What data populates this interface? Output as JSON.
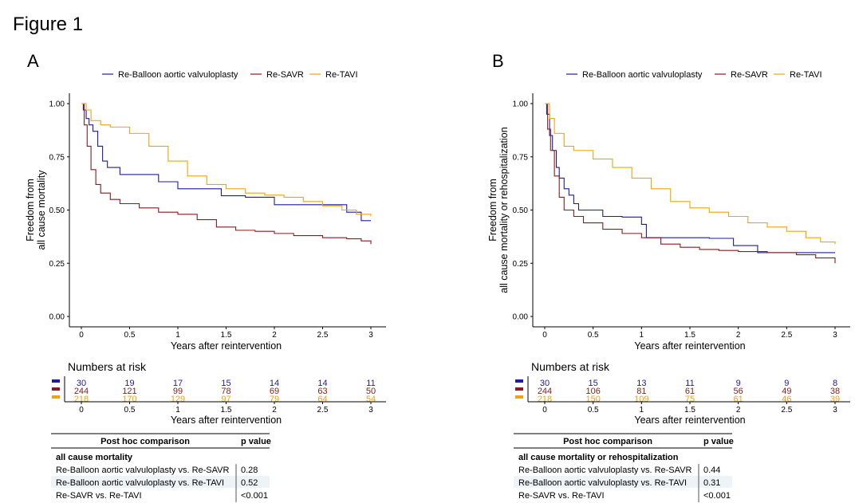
{
  "figure_title": "Figure 1",
  "colors": {
    "re_bav": "#1c1c9c",
    "re_savr": "#8b1a1a",
    "re_tavi": "#f2a20c"
  },
  "chart_data": [
    {
      "panel": "A",
      "type": "line",
      "step": true,
      "legend": [
        "Re-Balloon aortic valvuloplasty",
        "Re-SAVR",
        "Re-TAVI"
      ],
      "legend_position": "top",
      "xlabel": "Years after reintervention",
      "ylabel": [
        "Freedom from",
        "all cause mortality"
      ],
      "xlim": [
        0,
        3
      ],
      "ylim": [
        0,
        1
      ],
      "x_ticks": [
        "0",
        "0.5",
        "1",
        "1.5",
        "2",
        "2.5",
        "3"
      ],
      "y_ticks": [
        "0.00",
        "0.25",
        "0.50",
        "0.75",
        "1.00"
      ],
      "grid": false,
      "series": [
        {
          "name": "Re-Balloon aortic valvuloplasty",
          "color": "#1c1c9c",
          "x": [
            0,
            0.02,
            0.05,
            0.08,
            0.12,
            0.17,
            0.22,
            0.27,
            0.4,
            0.6,
            0.8,
            1.0,
            1.2,
            1.45,
            1.7,
            2.0,
            2.3,
            2.75,
            2.78,
            2.9,
            3.0
          ],
          "y": [
            1,
            0.97,
            0.93,
            0.9,
            0.87,
            0.8,
            0.73,
            0.7,
            0.667,
            0.667,
            0.633,
            0.6,
            0.6,
            0.567,
            0.56,
            0.525,
            0.525,
            0.49,
            0.49,
            0.45,
            0.45
          ]
        },
        {
          "name": "Re-SAVR",
          "color": "#8b1a1a",
          "x": [
            0,
            0.03,
            0.06,
            0.1,
            0.15,
            0.2,
            0.3,
            0.4,
            0.6,
            0.8,
            1.0,
            1.2,
            1.4,
            1.6,
            1.8,
            2.0,
            2.2,
            2.5,
            2.75,
            2.9,
            3.0
          ],
          "y": [
            1,
            0.9,
            0.8,
            0.69,
            0.62,
            0.58,
            0.55,
            0.53,
            0.51,
            0.49,
            0.48,
            0.455,
            0.42,
            0.405,
            0.4,
            0.39,
            0.38,
            0.37,
            0.365,
            0.355,
            0.34
          ]
        },
        {
          "name": "Re-TAVI",
          "color": "#f2a20c",
          "x": [
            0,
            0.05,
            0.1,
            0.2,
            0.3,
            0.5,
            0.7,
            0.9,
            1.1,
            1.3,
            1.5,
            1.7,
            1.9,
            2.1,
            2.3,
            2.5,
            2.7,
            2.85,
            3.0
          ],
          "y": [
            1,
            0.97,
            0.92,
            0.9,
            0.89,
            0.86,
            0.8,
            0.73,
            0.66,
            0.62,
            0.6,
            0.58,
            0.57,
            0.56,
            0.54,
            0.52,
            0.5,
            0.48,
            0.47
          ]
        }
      ],
      "numbers_at_risk": {
        "title": "Numbers at risk",
        "times": [
          "0",
          "0.5",
          "1",
          "1.5",
          "2",
          "2.5",
          "3"
        ],
        "rows": [
          {
            "color": "#1c1c9c",
            "values": [
              "30",
              "19",
              "17",
              "15",
              "14",
              "14",
              "11"
            ]
          },
          {
            "color": "#8b1a1a",
            "values": [
              "244",
              "121",
              "99",
              "78",
              "69",
              "63",
              "50"
            ]
          },
          {
            "color": "#f2a20c",
            "values": [
              "218",
              "170",
              "129",
              "97",
              "79",
              "64",
              "54"
            ]
          }
        ],
        "xlabel": "Years after reintervention"
      },
      "table": {
        "headers": [
          "Post hoc comparison",
          "p value"
        ],
        "section": "all cause mortality",
        "rows": [
          {
            "label": "Re-Balloon aortic valvuloplasty vs. Re-SAVR",
            "p": "0.28"
          },
          {
            "label": "Re-Balloon aortic valvuloplasty vs. Re-TAVI",
            "p": "0.52"
          },
          {
            "label": "Re-SAVR vs. Re-TAVI",
            "p": "<0.001"
          }
        ]
      }
    },
    {
      "panel": "B",
      "type": "line",
      "step": true,
      "legend": [
        "Re-Balloon aortic valvuloplasty",
        "Re-SAVR",
        "Re-TAVI"
      ],
      "legend_position": "top",
      "xlabel": "Years after reintervention",
      "ylabel": [
        "Freedom from",
        "all cause mortality or rehospitalization"
      ],
      "xlim": [
        0,
        3
      ],
      "ylim": [
        0,
        1
      ],
      "x_ticks": [
        "0",
        "0.5",
        "1",
        "1.5",
        "2",
        "2.5",
        "3"
      ],
      "y_ticks": [
        "0.00",
        "0.25",
        "0.50",
        "0.75",
        "1.00"
      ],
      "grid": false,
      "series": [
        {
          "name": "Re-Balloon aortic valvuloplasty",
          "color": "#1c1c9c",
          "x": [
            0,
            0.02,
            0.05,
            0.08,
            0.12,
            0.15,
            0.2,
            0.25,
            0.3,
            0.35,
            0.45,
            0.6,
            0.8,
            1.0,
            1.05,
            1.7,
            1.95,
            2.2,
            2.5,
            3.0
          ],
          "y": [
            1,
            0.95,
            0.85,
            0.78,
            0.7,
            0.65,
            0.6,
            0.57,
            0.53,
            0.5,
            0.5,
            0.47,
            0.467,
            0.433,
            0.37,
            0.367,
            0.333,
            0.3,
            0.3,
            0.3
          ]
        },
        {
          "name": "Re-SAVR",
          "color": "#8b1a1a",
          "x": [
            0,
            0.03,
            0.06,
            0.1,
            0.15,
            0.2,
            0.3,
            0.4,
            0.6,
            0.8,
            1.0,
            1.2,
            1.4,
            1.6,
            1.8,
            2.0,
            2.3,
            2.6,
            2.8,
            3.0
          ],
          "y": [
            1,
            0.88,
            0.78,
            0.66,
            0.56,
            0.5,
            0.47,
            0.44,
            0.41,
            0.39,
            0.37,
            0.34,
            0.325,
            0.315,
            0.31,
            0.305,
            0.3,
            0.29,
            0.275,
            0.25
          ]
        },
        {
          "name": "Re-TAVI",
          "color": "#f2a20c",
          "x": [
            0,
            0.05,
            0.1,
            0.2,
            0.3,
            0.5,
            0.7,
            0.9,
            1.1,
            1.3,
            1.5,
            1.7,
            1.9,
            2.1,
            2.3,
            2.5,
            2.7,
            2.85,
            3.0
          ],
          "y": [
            1,
            0.93,
            0.86,
            0.8,
            0.78,
            0.74,
            0.7,
            0.65,
            0.6,
            0.54,
            0.51,
            0.49,
            0.47,
            0.44,
            0.42,
            0.4,
            0.37,
            0.35,
            0.34
          ]
        }
      ],
      "numbers_at_risk": {
        "title": "Numbers at risk",
        "times": [
          "0",
          "0.5",
          "1",
          "1.5",
          "2",
          "2.5",
          "3"
        ],
        "rows": [
          {
            "color": "#1c1c9c",
            "values": [
              "30",
              "15",
              "13",
              "11",
              "9",
              "9",
              "8"
            ]
          },
          {
            "color": "#8b1a1a",
            "values": [
              "244",
              "106",
              "81",
              "61",
              "56",
              "49",
              "38"
            ]
          },
          {
            "color": "#f2a20c",
            "values": [
              "218",
              "150",
              "109",
              "75",
              "61",
              "46",
              "39"
            ]
          }
        ],
        "xlabel": "Years after reintervention"
      },
      "table": {
        "headers": [
          "Post hoc comparison",
          "p value"
        ],
        "section": "all cause mortality or rehospitalization",
        "rows": [
          {
            "label": "Re-Balloon aortic valvuloplasty vs. Re-SAVR",
            "p": "0.44"
          },
          {
            "label": "Re-Balloon aortic valvuloplasty vs. Re-TAVI",
            "p": "0.31"
          },
          {
            "label": "Re-SAVR vs. Re-TAVI",
            "p": "<0.001"
          }
        ]
      }
    }
  ]
}
